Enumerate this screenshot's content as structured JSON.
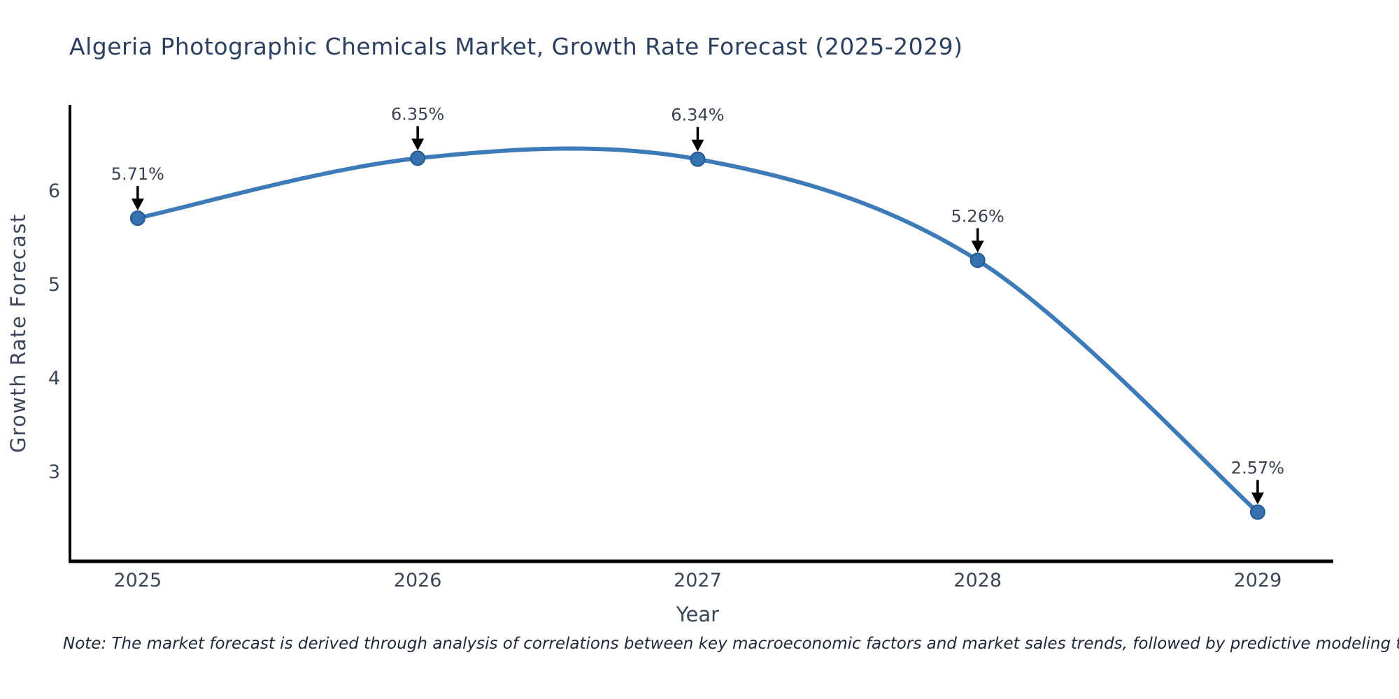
{
  "title": "Algeria Photographic Chemicals Market, Growth Rate Forecast (2025-2029)",
  "note": "Note: The market forecast is derived through analysis of correlations between key macroeconomic factors and market sales trends, followed by predictive modeling to project future sales.",
  "chart_data": {
    "type": "line",
    "title": "Algeria Photographic Chemicals Market, Growth Rate Forecast (2025-2029)",
    "xlabel": "Year",
    "ylabel": "Growth Rate Forecast",
    "categories": [
      "2025",
      "2026",
      "2027",
      "2028",
      "2029"
    ],
    "x": [
      2025,
      2026,
      2027,
      2028,
      2029
    ],
    "series": [
      {
        "name": "Growth Rate Forecast",
        "values": [
          5.71,
          6.35,
          6.34,
          5.26,
          2.57
        ]
      }
    ],
    "data_labels": [
      "5.71%",
      "6.35%",
      "6.34%",
      "5.26%",
      "2.57%"
    ],
    "yticks": [
      3,
      4,
      5,
      6
    ],
    "ylim": [
      2.045,
      6.92
    ],
    "xlim": [
      2024.758,
      2029.27
    ],
    "grid": false,
    "line_shape": "spline",
    "legend_position": "none",
    "colors": {
      "line": "#3d7ab8",
      "marker_fill": "#3471ae",
      "marker_edge": "#27598c",
      "axis_line": "#000000",
      "annotation_arrow": "#000000",
      "title_text": "#2c3f5e",
      "tick_text": "#3b4656",
      "note_text": "#20283a"
    }
  }
}
